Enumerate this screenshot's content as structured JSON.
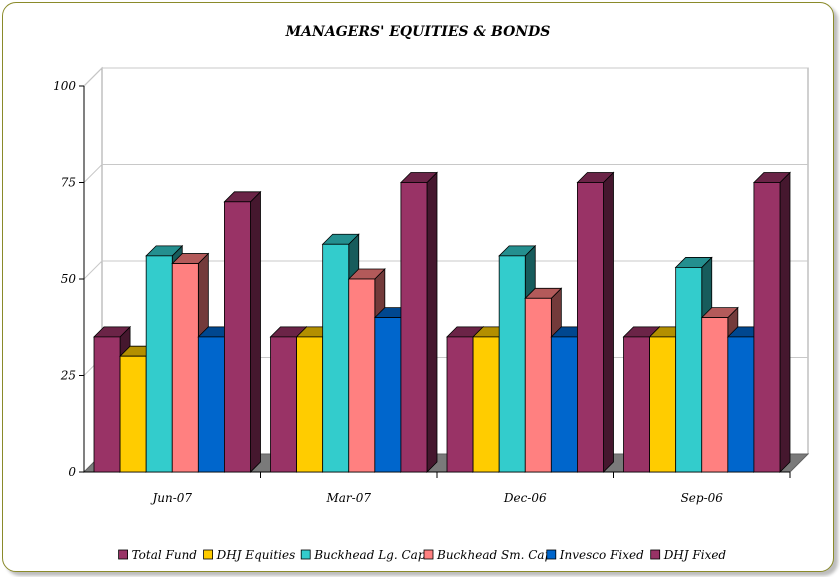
{
  "chart_data": {
    "type": "bar",
    "title": "MANAGERS' EQUITIES & BONDS",
    "xlabel": "",
    "ylabel": "",
    "ylim": [
      0,
      100
    ],
    "yticks": [
      "0",
      "25",
      "50",
      "75",
      "100"
    ],
    "grid": true,
    "legend_position": "bottom",
    "categories": [
      "Jun-07",
      "Mar-07",
      "Dec-06",
      "Sep-06"
    ],
    "series": [
      {
        "name": "Total Fund",
        "color": "#993366",
        "values": [
          35,
          35,
          35,
          35
        ]
      },
      {
        "name": "DHJ Equities",
        "color": "#ffcc00",
        "values": [
          30,
          35,
          35,
          35
        ]
      },
      {
        "name": "Buckhead Lg. Cap",
        "color": "#33cccc",
        "values": [
          56,
          59,
          56,
          53
        ]
      },
      {
        "name": "Buckhead Sm. Cap",
        "color": "#ff8080",
        "values": [
          54,
          50,
          45,
          40
        ]
      },
      {
        "name": "Invesco Fixed",
        "color": "#0066cc",
        "values": [
          35,
          40,
          35,
          35
        ]
      },
      {
        "name": "DHJ Fixed",
        "color": "#993366",
        "values": [
          70,
          75,
          75,
          75
        ]
      }
    ]
  }
}
